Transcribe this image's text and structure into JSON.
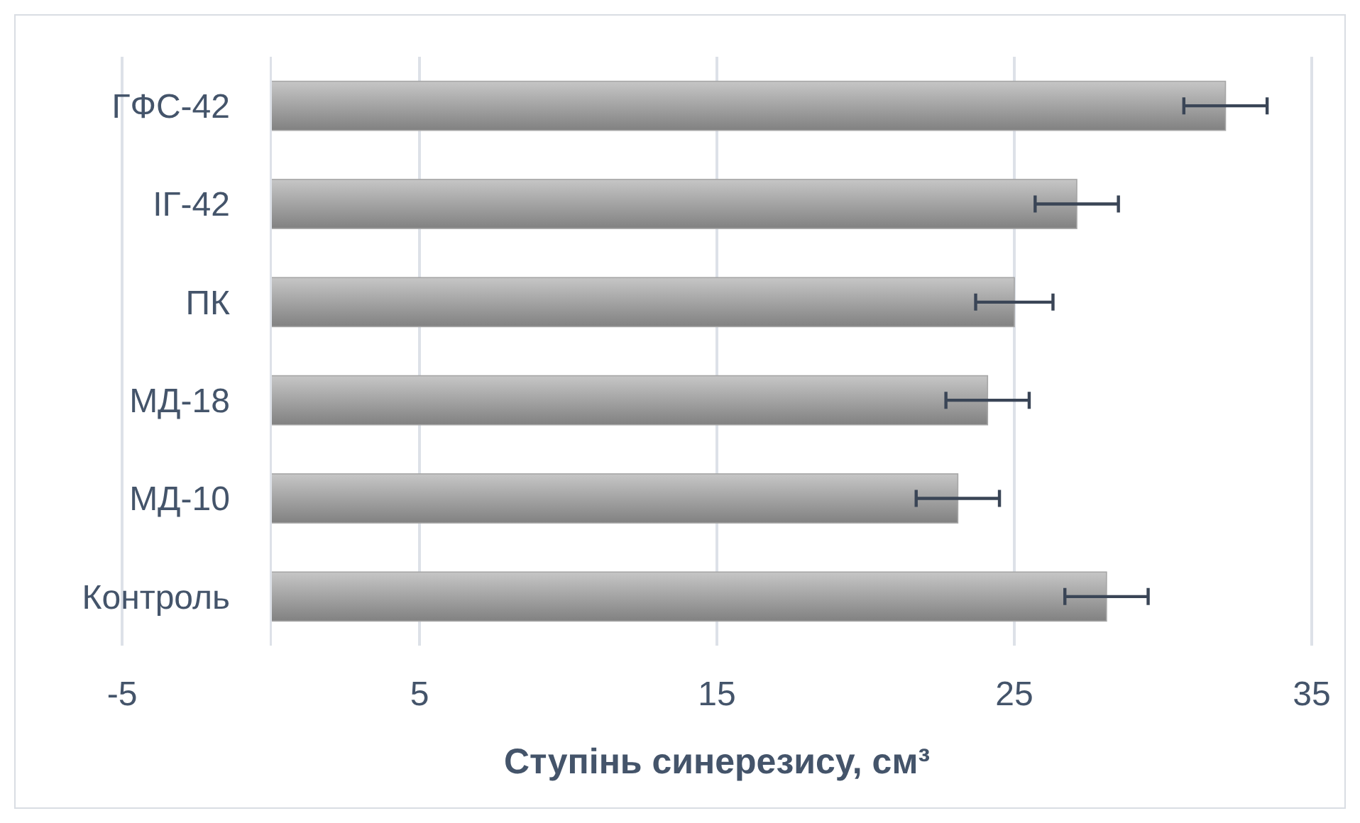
{
  "chart_data": {
    "type": "bar",
    "orientation": "horizontal",
    "xlabel": "Ступінь синерезису, см³",
    "categories": [
      "ГФС-42",
      "ІГ-42",
      "ПК",
      "МД-18",
      "МД-10",
      "Контроль"
    ],
    "values": [
      32.1,
      27.1,
      25.0,
      24.1,
      23.1,
      28.1
    ],
    "errors": [
      1.4,
      1.4,
      1.3,
      1.4,
      1.4,
      1.4
    ],
    "color": "#a6a6a6",
    "xlim": [
      -5,
      35
    ],
    "xticks": [
      -5,
      5,
      15,
      25,
      35
    ],
    "grid": "x"
  }
}
